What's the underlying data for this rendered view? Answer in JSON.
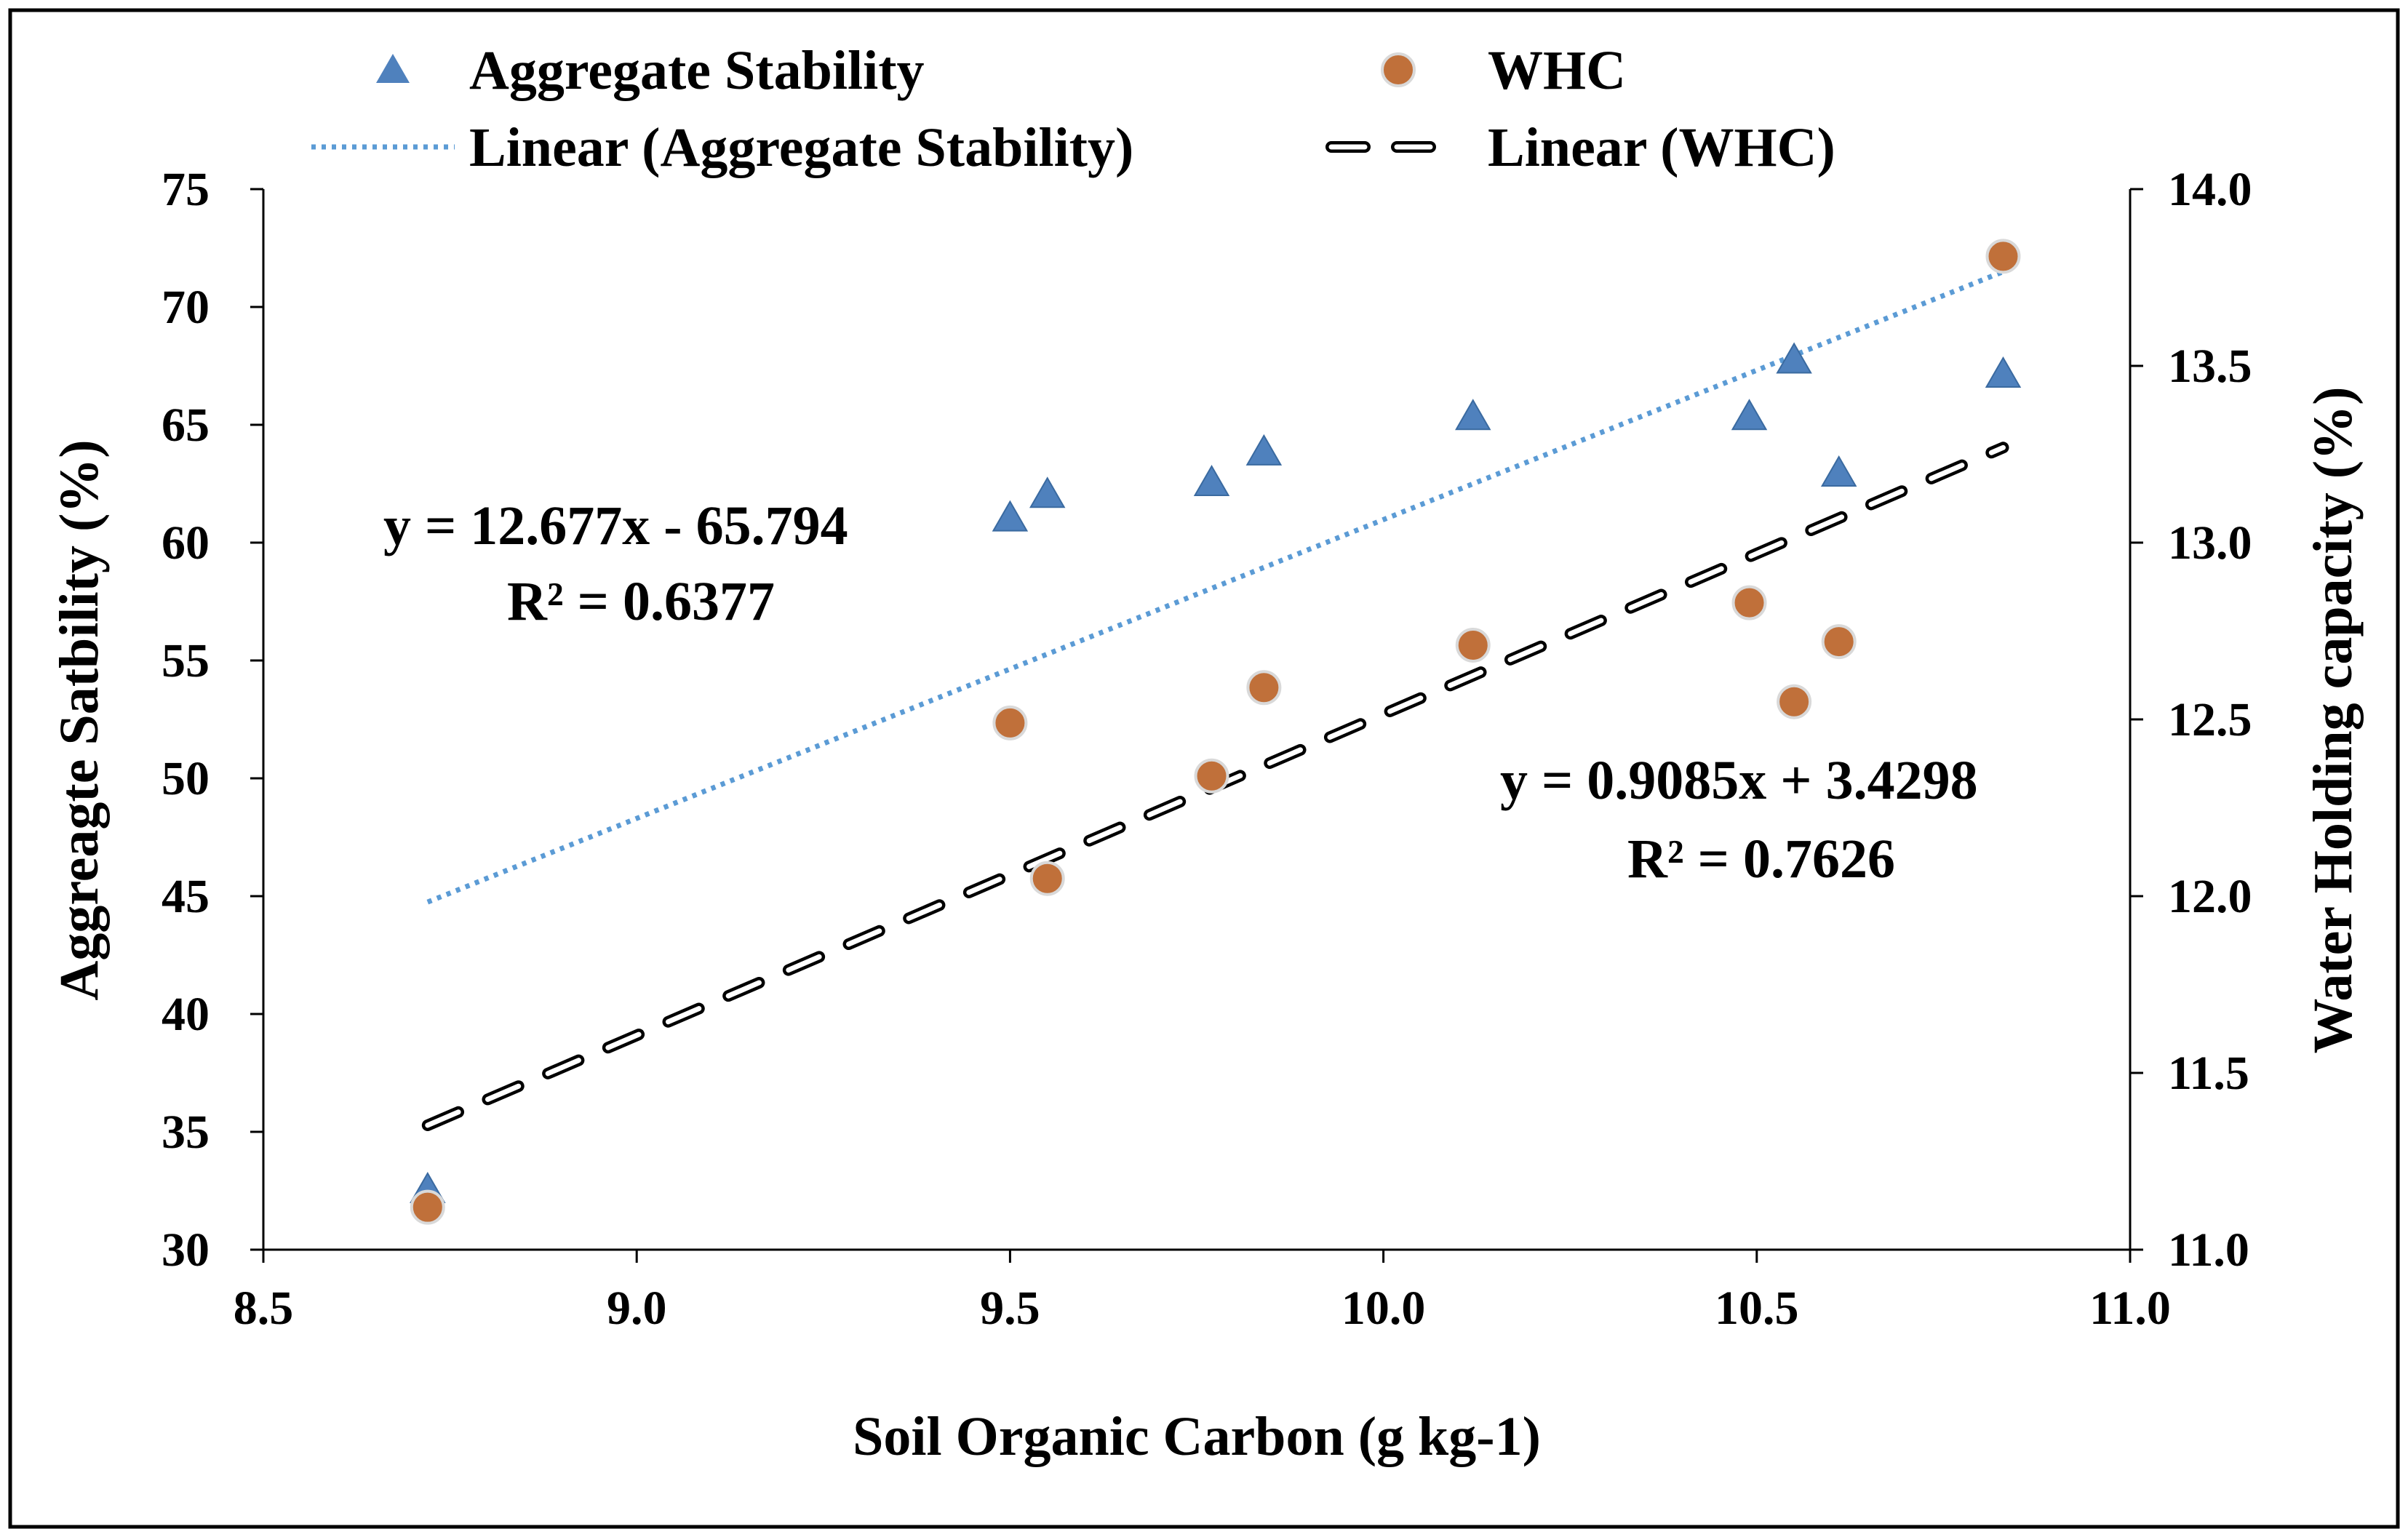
{
  "chart_data": {
    "type": "scatter",
    "xlabel": "Soil Organic Carbon (g kg-1)",
    "ylabel_left": "Aggreagte Satbility (%)",
    "ylabel_right": "Water Holding capacity (%)",
    "xlim": [
      8.5,
      11.0
    ],
    "ylim_left": [
      30,
      75
    ],
    "ylim_right": [
      11.0,
      14.0
    ],
    "x_ticks": [
      "8.5",
      "9.0",
      "9.5",
      "10.0",
      "10.5",
      "11.0"
    ],
    "y_left_ticks": [
      "30",
      "35",
      "40",
      "45",
      "50",
      "55",
      "60",
      "65",
      "70",
      "75"
    ],
    "y_right_ticks": [
      "11.0",
      "11.5",
      "12.0",
      "12.5",
      "13.0",
      "13.5",
      "14.0"
    ],
    "series": [
      {
        "name": "Aggregate Stability",
        "axis": "left",
        "marker": "triangle",
        "color": "#4F81BD",
        "points": [
          {
            "x": 8.72,
            "y": 32.5
          },
          {
            "x": 9.5,
            "y": 61.0
          },
          {
            "x": 9.55,
            "y": 62.0
          },
          {
            "x": 9.77,
            "y": 62.5
          },
          {
            "x": 9.84,
            "y": 63.8
          },
          {
            "x": 10.12,
            "y": 65.3
          },
          {
            "x": 10.49,
            "y": 65.3
          },
          {
            "x": 10.55,
            "y": 67.7
          },
          {
            "x": 10.61,
            "y": 62.9
          },
          {
            "x": 10.83,
            "y": 67.1
          }
        ]
      },
      {
        "name": "WHC",
        "axis": "right",
        "marker": "circle",
        "color": "#C0703A",
        "points": [
          {
            "x": 8.72,
            "y": 11.12
          },
          {
            "x": 9.5,
            "y": 12.49
          },
          {
            "x": 9.55,
            "y": 12.05
          },
          {
            "x": 9.77,
            "y": 12.34
          },
          {
            "x": 9.84,
            "y": 12.59
          },
          {
            "x": 10.12,
            "y": 12.71
          },
          {
            "x": 10.49,
            "y": 12.83
          },
          {
            "x": 10.55,
            "y": 12.55
          },
          {
            "x": 10.61,
            "y": 12.72
          },
          {
            "x": 10.83,
            "y": 13.81
          }
        ]
      }
    ],
    "trendlines": [
      {
        "name": "Linear (Aggregate Stability)",
        "axis": "left",
        "style": "dotted",
        "color": "#5B9BD5",
        "slope": 12.677,
        "intercept": -65.794,
        "x_range": [
          8.72,
          10.83
        ],
        "equation": "y = 12.677x - 65.794",
        "r2": "R² = 0.6377"
      },
      {
        "name": "Linear (WHC)",
        "axis": "right",
        "style": "dashed",
        "color": "#000000",
        "slope": 0.9085,
        "intercept": 3.4298,
        "x_range": [
          8.72,
          10.83
        ],
        "equation": "y = 0.9085x + 3.4298",
        "r2": "R² = 0.7626"
      }
    ],
    "legend": {
      "position": "top",
      "items": [
        "Aggregate Stability",
        "WHC",
        "Linear (Aggregate Stability)",
        "Linear (WHC)"
      ]
    }
  }
}
